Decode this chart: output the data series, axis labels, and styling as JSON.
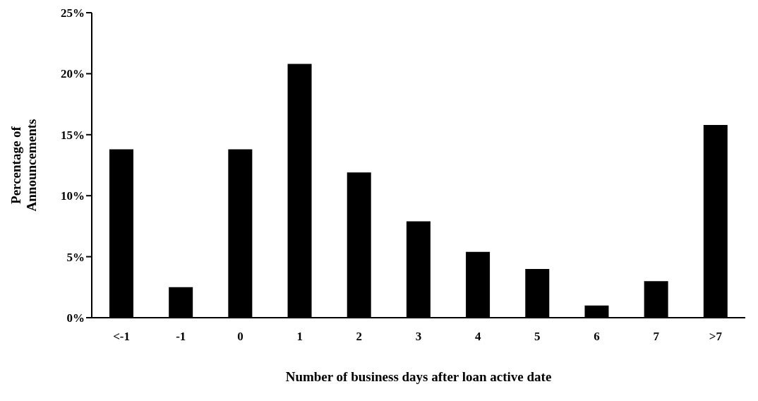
{
  "chart_data": {
    "type": "bar",
    "xlabel": "Number of business days after loan active date",
    "ylabel": "Percentage of Announcements",
    "categories": [
      "<-1",
      "-1",
      "0",
      "1",
      "2",
      "3",
      "4",
      "5",
      "6",
      "7",
      ">7"
    ],
    "values": [
      13.8,
      2.5,
      13.8,
      20.8,
      11.9,
      7.9,
      5.4,
      4.0,
      1.0,
      3.0,
      15.8
    ],
    "color": "#000000",
    "ylim": [
      0,
      25
    ],
    "yticks": [
      {
        "value": 0,
        "label": "0%"
      },
      {
        "value": 5,
        "label": "5%"
      },
      {
        "value": 10,
        "label": "10%"
      },
      {
        "value": 15,
        "label": "15%"
      },
      {
        "value": 20,
        "label": "20%"
      },
      {
        "value": 25,
        "label": "25%"
      }
    ],
    "grid": false,
    "legend": false
  }
}
